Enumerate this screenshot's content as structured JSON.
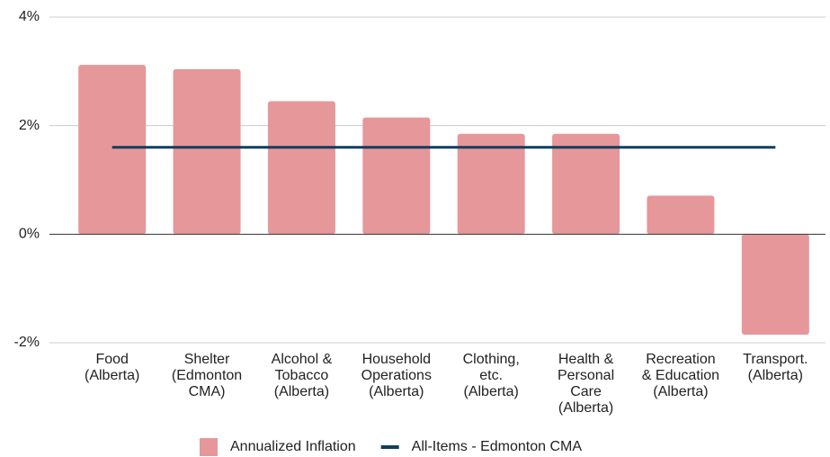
{
  "chart_data": {
    "type": "bar",
    "categories": [
      "Food (Alberta)",
      "Shelter (Edmonton CMA)",
      "Alcohol & Tobacco (Alberta)",
      "Household Operations (Alberta)",
      "Clothing, etc. (Alberta)",
      "Health & Personal Care (Alberta)",
      "Recreation & Education (Alberta)",
      "Transport. (Alberta)"
    ],
    "series": [
      {
        "name": "Annualized Inflation",
        "type": "bar",
        "color": "#e69799",
        "values": [
          3.12,
          3.04,
          2.45,
          2.15,
          1.85,
          1.85,
          0.71,
          -1.85
        ]
      },
      {
        "name": "All-Items - Edmonton CMA",
        "type": "line",
        "color": "#0e3f5f",
        "values": [
          1.6,
          1.6,
          1.6,
          1.6,
          1.6,
          1.6,
          1.6,
          1.6
        ]
      }
    ],
    "ylim": [
      -2,
      4
    ],
    "yticks": [
      {
        "value": -2,
        "label": "-2%"
      },
      {
        "value": 0,
        "label": "0%"
      },
      {
        "value": 2,
        "label": "2%"
      },
      {
        "value": 4,
        "label": "4%"
      }
    ],
    "grid": true,
    "legend": "bottom"
  }
}
